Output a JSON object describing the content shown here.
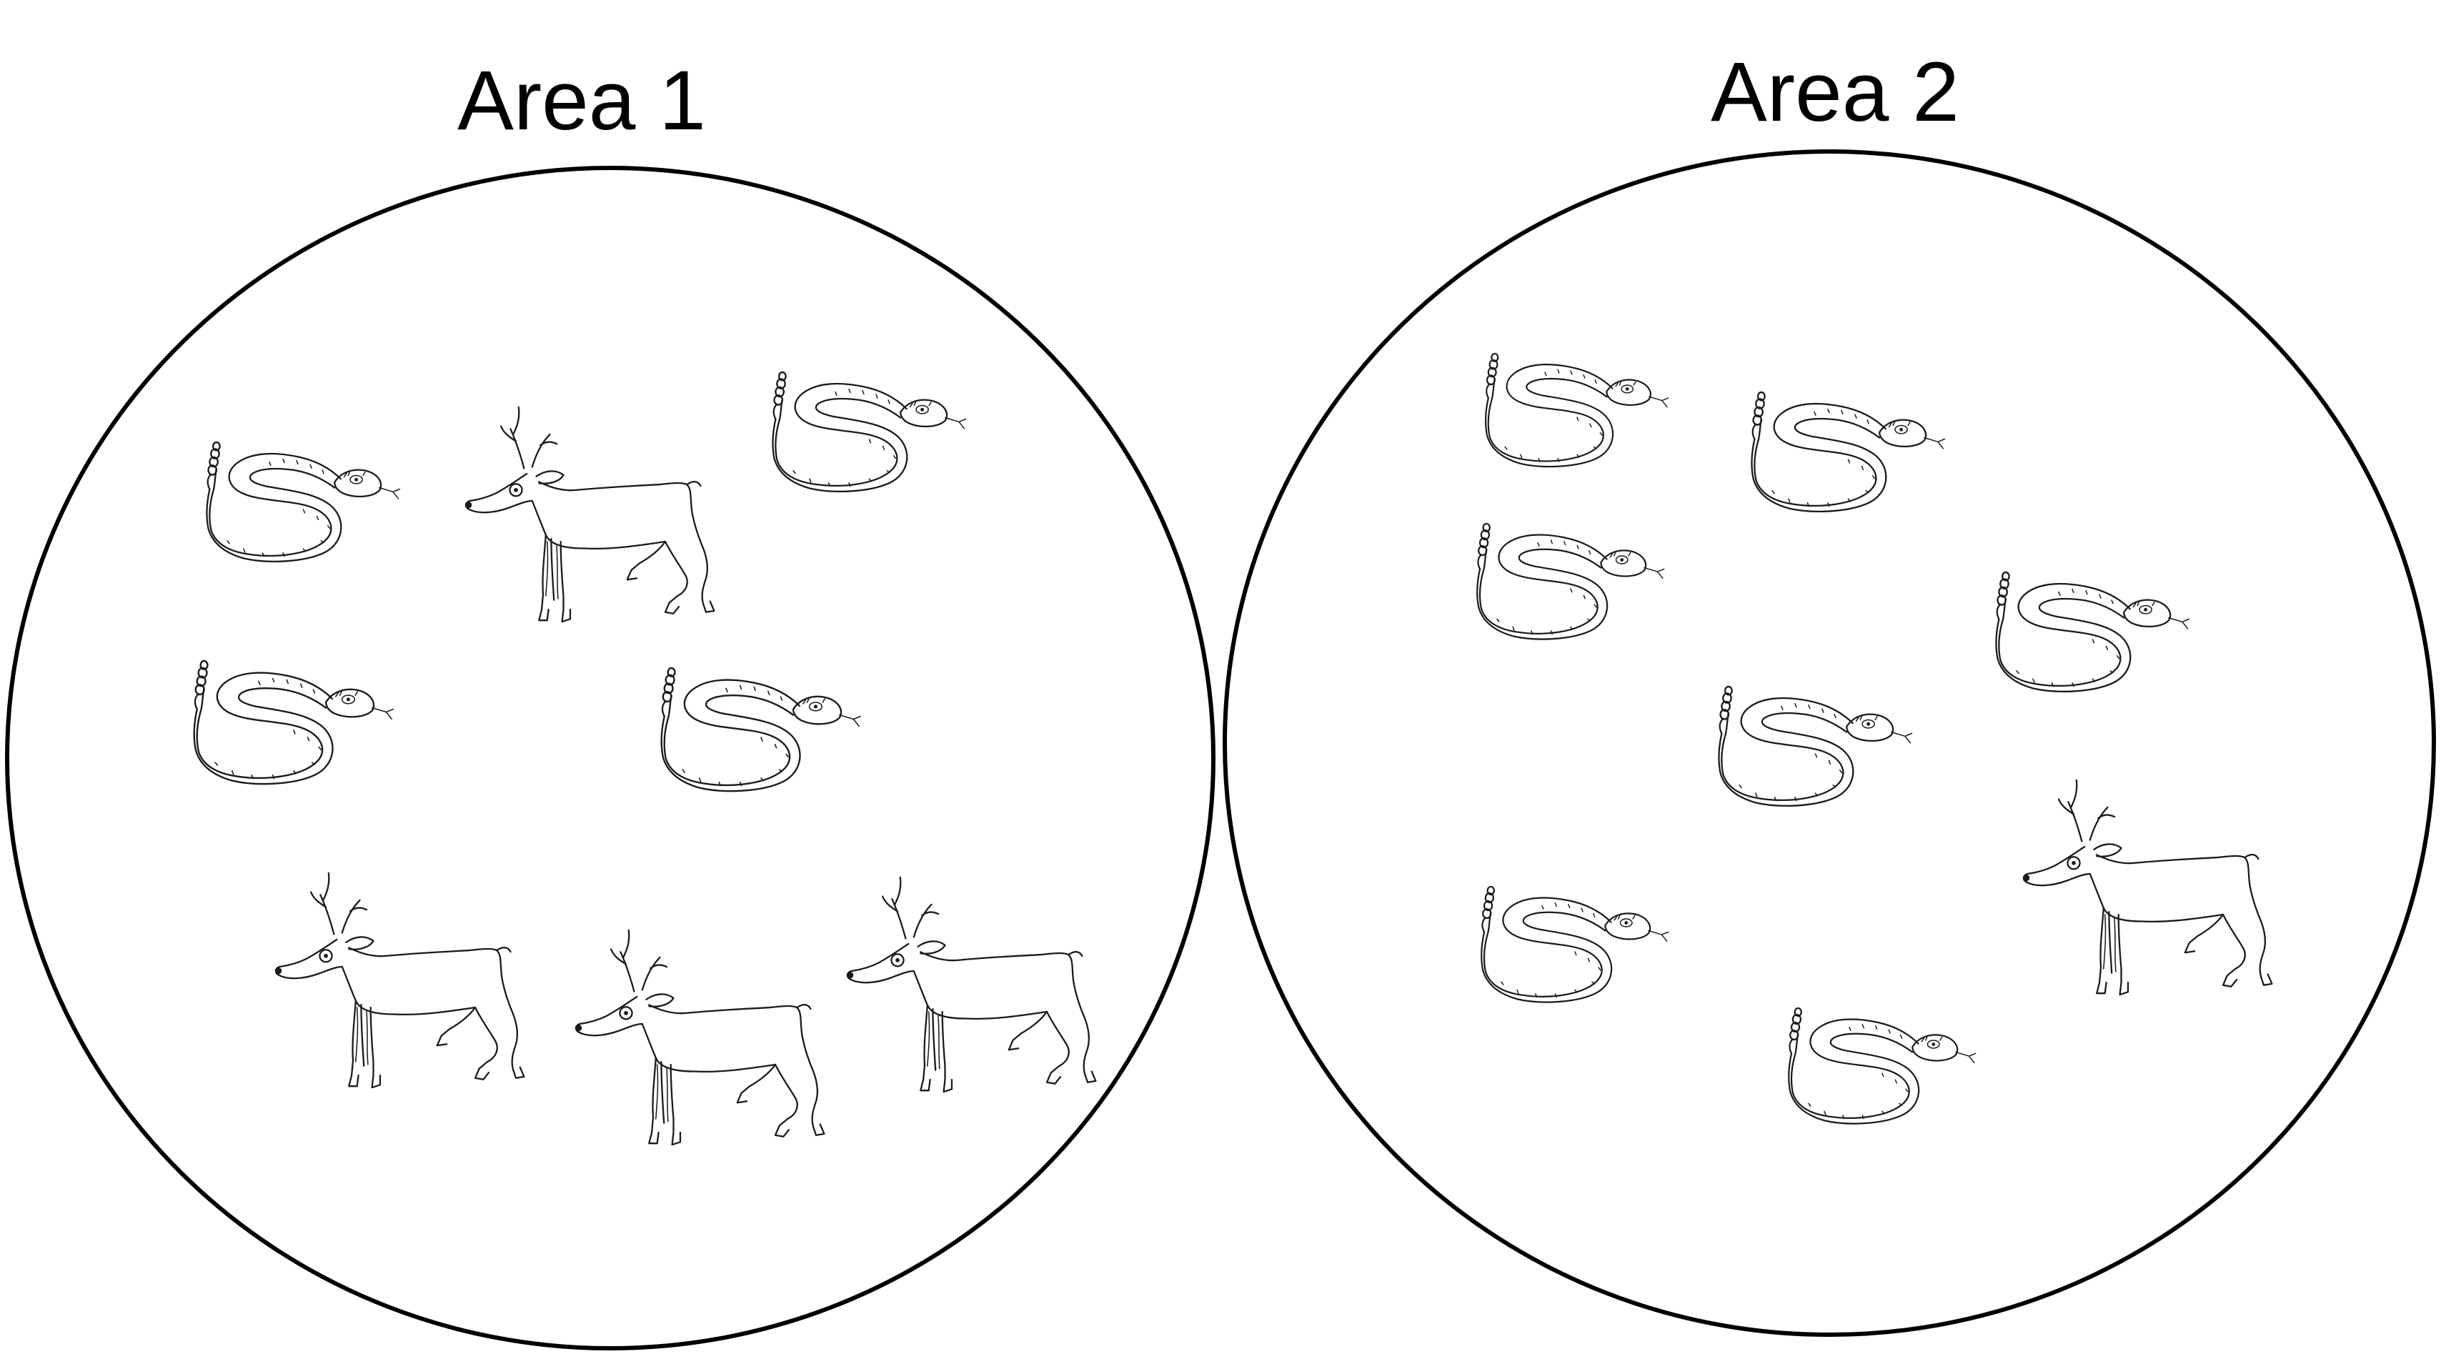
{
  "areas": [
    {
      "title": "Area 1",
      "animals": [
        {
          "kind": "snake-icon"
        },
        {
          "kind": "snake-icon"
        },
        {
          "kind": "snake-icon"
        },
        {
          "kind": "snake-icon"
        },
        {
          "kind": "deer-icon"
        },
        {
          "kind": "deer-icon"
        },
        {
          "kind": "deer-icon"
        },
        {
          "kind": "deer-icon"
        }
      ]
    },
    {
      "title": "Area 2",
      "animals": [
        {
          "kind": "snake-icon"
        },
        {
          "kind": "snake-icon"
        },
        {
          "kind": "snake-icon"
        },
        {
          "kind": "snake-icon"
        },
        {
          "kind": "snake-icon"
        },
        {
          "kind": "snake-icon"
        },
        {
          "kind": "snake-icon"
        },
        {
          "kind": "deer-icon"
        }
      ]
    }
  ],
  "colors": {
    "line": "#000000",
    "background": "#ffffff"
  }
}
